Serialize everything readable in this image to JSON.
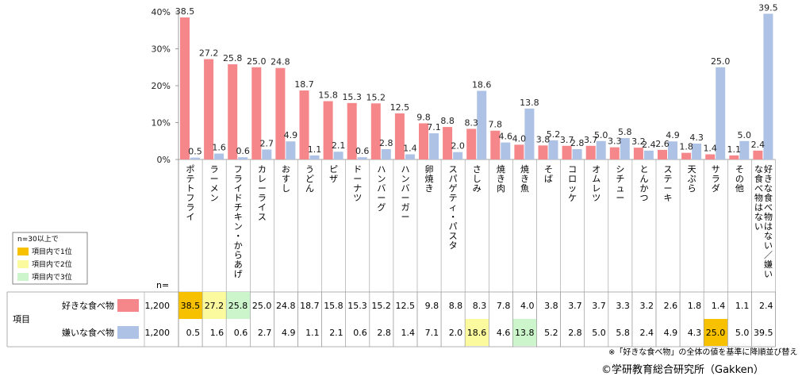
{
  "chart_data": {
    "type": "bar",
    "title": "",
    "xlabel": "",
    "ylabel": "",
    "ylim": [
      0,
      40
    ],
    "yticks": [
      "0%",
      "10%",
      "20%",
      "30%",
      "40%"
    ],
    "categories": [
      "ポテトフライ",
      "ラーメン",
      "フライドチキン・からあげ",
      "カレーライス",
      "おすし",
      "うどん",
      "ピザ",
      "ドーナツ",
      "ハンバーグ",
      "ハンバーガー",
      "卵焼き",
      "スパゲティ・パスタ",
      "さしみ",
      "焼き肉",
      "焼き魚",
      "そば",
      "コロッケ",
      "オムレツ",
      "シチュー",
      "とんかつ",
      "ステーキ",
      "天ぷら",
      "サラダ",
      "その他",
      "好きな食べ物はない／嫌いな食べ物はない"
    ],
    "series": [
      {
        "name": "好きな食べ物",
        "n": "1,200",
        "color": "#f5868a",
        "values": [
          38.5,
          27.2,
          25.8,
          25.0,
          24.8,
          18.7,
          15.8,
          15.3,
          15.2,
          12.5,
          9.8,
          8.8,
          8.3,
          7.8,
          4.0,
          3.8,
          3.7,
          3.7,
          3.3,
          3.2,
          2.6,
          1.8,
          1.4,
          1.1,
          2.4
        ]
      },
      {
        "name": "嫌いな食べ物",
        "n": "1,200",
        "color": "#aec2e6",
        "values": [
          0.5,
          1.6,
          0.6,
          2.7,
          4.9,
          1.1,
          2.1,
          0.6,
          2.8,
          1.4,
          7.1,
          2.0,
          18.6,
          4.6,
          13.8,
          5.2,
          2.8,
          5.0,
          5.8,
          2.4,
          4.9,
          4.3,
          25.0,
          5.0,
          39.5
        ]
      }
    ],
    "rank_highlights": {
      "like": [
        "1",
        "2",
        "3",
        "",
        "",
        "",
        "",
        "",
        "",
        "",
        "",
        "",
        "",
        "",
        "",
        "",
        "",
        "",
        "",
        "",
        "",
        "",
        "",
        "",
        ""
      ],
      "dislike": [
        "",
        "",
        "",
        "",
        "",
        "",
        "",
        "",
        "",
        "",
        "",
        "",
        "2",
        "",
        "3",
        "",
        "",
        "",
        "",
        "",
        "",
        "",
        "1",
        "",
        ""
      ]
    }
  },
  "legend": {
    "heading": "n=30以上で",
    "items": [
      {
        "label": "項目内で1位",
        "color": "#f7c100"
      },
      {
        "label": "項目内で2位",
        "color": "#fbfa9e"
      },
      {
        "label": "項目内で3位",
        "color": "#ccf5cc"
      }
    ]
  },
  "table": {
    "n_label": "n=",
    "row_header": "項目"
  },
  "footnote": "※「好きな食べ物」の全体の値を基準に降順並び替え",
  "copyright": "©学研教育総合研究所（Gakken）"
}
